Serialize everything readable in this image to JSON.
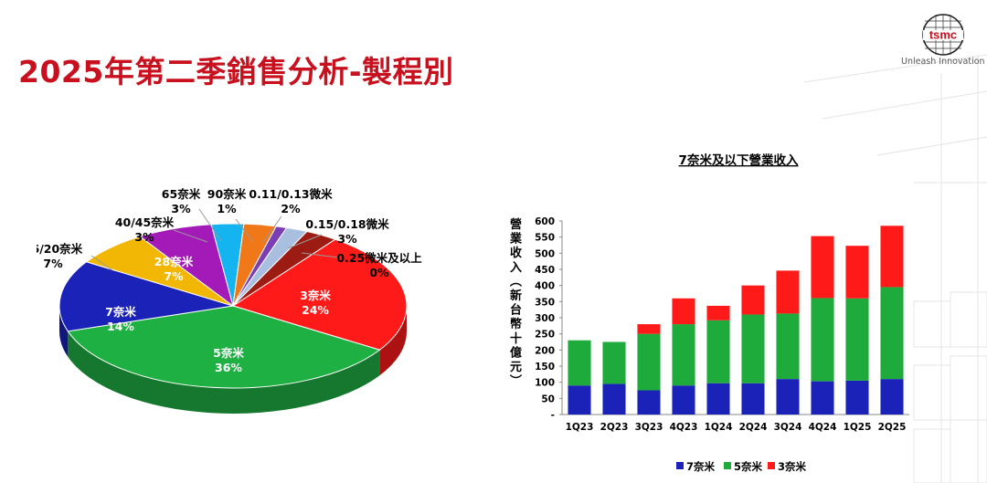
{
  "header": {
    "title": "2025年第二季銷售分析-製程別",
    "brand": "tsmc",
    "tagline": "Unleash Innovation"
  },
  "colors": {
    "brand_red": "#c8101e",
    "n3": "#ff1a1a",
    "n5": "#1faa3c",
    "n7": "#1a22b8"
  },
  "chart_data": [
    {
      "type": "pie",
      "slices": [
        {
          "label": "3奈米",
          "pct": "24%",
          "value": 24,
          "color": "#ff1a1a"
        },
        {
          "label": "5奈米",
          "pct": "36%",
          "value": 36,
          "color": "#1fb043"
        },
        {
          "label": "7奈米",
          "pct": "14%",
          "value": 14,
          "color": "#1a22b8"
        },
        {
          "label": "16/20奈米",
          "pct": "7%",
          "value": 7,
          "color": "#f2b705"
        },
        {
          "label": "28奈米",
          "pct": "7%",
          "value": 7,
          "color": "#a31ab8"
        },
        {
          "label": "40/45奈米",
          "pct": "3%",
          "value": 3,
          "color": "#14b4f0"
        },
        {
          "label": "65奈米",
          "pct": "3%",
          "value": 3,
          "color": "#f07818"
        },
        {
          "label": "90奈米",
          "pct": "1%",
          "value": 1,
          "color": "#7a3fb5"
        },
        {
          "label": "0.11/0.13微米",
          "pct": "2%",
          "value": 2,
          "color": "#a8bfe0"
        },
        {
          "label": "0.15/0.18微米",
          "pct": "3%",
          "value": 3,
          "color": "#9c1c14"
        },
        {
          "label": "0.25微米及以上",
          "pct": "0%",
          "value": 0,
          "color": "#e0e0e0"
        }
      ]
    },
    {
      "type": "bar",
      "stacked": true,
      "title": "7奈米及以下營業收入",
      "ylabel": "營業收入(新台幣十億元)",
      "ylim": [
        0,
        600
      ],
      "yticks": [
        "-",
        "50",
        "100",
        "150",
        "200",
        "250",
        "300",
        "350",
        "400",
        "450",
        "500",
        "550",
        "600"
      ],
      "categories": [
        "1Q23",
        "2Q23",
        "3Q23",
        "4Q23",
        "1Q24",
        "2Q24",
        "3Q24",
        "4Q24",
        "1Q25",
        "2Q25"
      ],
      "series": [
        {
          "name": "7奈米",
          "color": "#1a22b8",
          "values": [
            90,
            95,
            75,
            90,
            97,
            97,
            110,
            103,
            105,
            110
          ]
        },
        {
          "name": "5奈米",
          "color": "#1faa3c",
          "values": [
            140,
            130,
            175,
            190,
            195,
            213,
            203,
            258,
            255,
            285
          ]
        },
        {
          "name": "3奈米",
          "color": "#ff1a1a",
          "values": [
            0,
            0,
            30,
            80,
            45,
            90,
            133,
            192,
            163,
            190
          ]
        }
      ]
    }
  ]
}
